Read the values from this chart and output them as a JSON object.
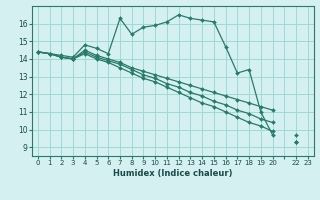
{
  "xlabel": "Humidex (Indice chaleur)",
  "bg_color": "#d4f0f0",
  "grid_color": "#a0d8d8",
  "line_color": "#2a7a6a",
  "xlim": [
    -0.5,
    23.5
  ],
  "ylim": [
    8.5,
    17.0
  ],
  "yticks": [
    9,
    10,
    11,
    12,
    13,
    14,
    15,
    16
  ],
  "xtick_labels": [
    "0",
    "1",
    "2",
    "3",
    "4",
    "5",
    "6",
    "7",
    "8",
    "9",
    "10",
    "11",
    "12",
    "13",
    "14",
    "15",
    "16",
    "17",
    "18",
    "19",
    "20",
    "",
    "22",
    "23"
  ],
  "series": [
    [
      14.4,
      14.3,
      14.2,
      14.1,
      14.8,
      14.6,
      14.3,
      16.3,
      15.4,
      15.8,
      15.9,
      16.1,
      16.5,
      16.3,
      16.2,
      16.1,
      14.7,
      13.2,
      13.4,
      11.0,
      9.7,
      null,
      9.3,
      null
    ],
    [
      14.4,
      14.3,
      14.1,
      14.0,
      14.5,
      14.2,
      14.0,
      13.8,
      13.5,
      13.3,
      13.1,
      12.9,
      12.7,
      12.5,
      12.3,
      12.1,
      11.9,
      11.7,
      11.5,
      11.3,
      11.1,
      null,
      9.7,
      null
    ],
    [
      14.4,
      14.3,
      14.1,
      14.0,
      14.4,
      14.1,
      13.9,
      13.7,
      13.4,
      13.1,
      12.9,
      12.6,
      12.4,
      12.1,
      11.9,
      11.6,
      11.4,
      11.1,
      10.9,
      10.6,
      10.4,
      null,
      9.3,
      null
    ],
    [
      14.4,
      14.3,
      14.1,
      14.0,
      14.3,
      14.0,
      13.8,
      13.5,
      13.2,
      12.9,
      12.7,
      12.4,
      12.1,
      11.8,
      11.5,
      11.3,
      11.0,
      10.7,
      10.4,
      10.2,
      9.9,
      null,
      9.3,
      null
    ]
  ]
}
